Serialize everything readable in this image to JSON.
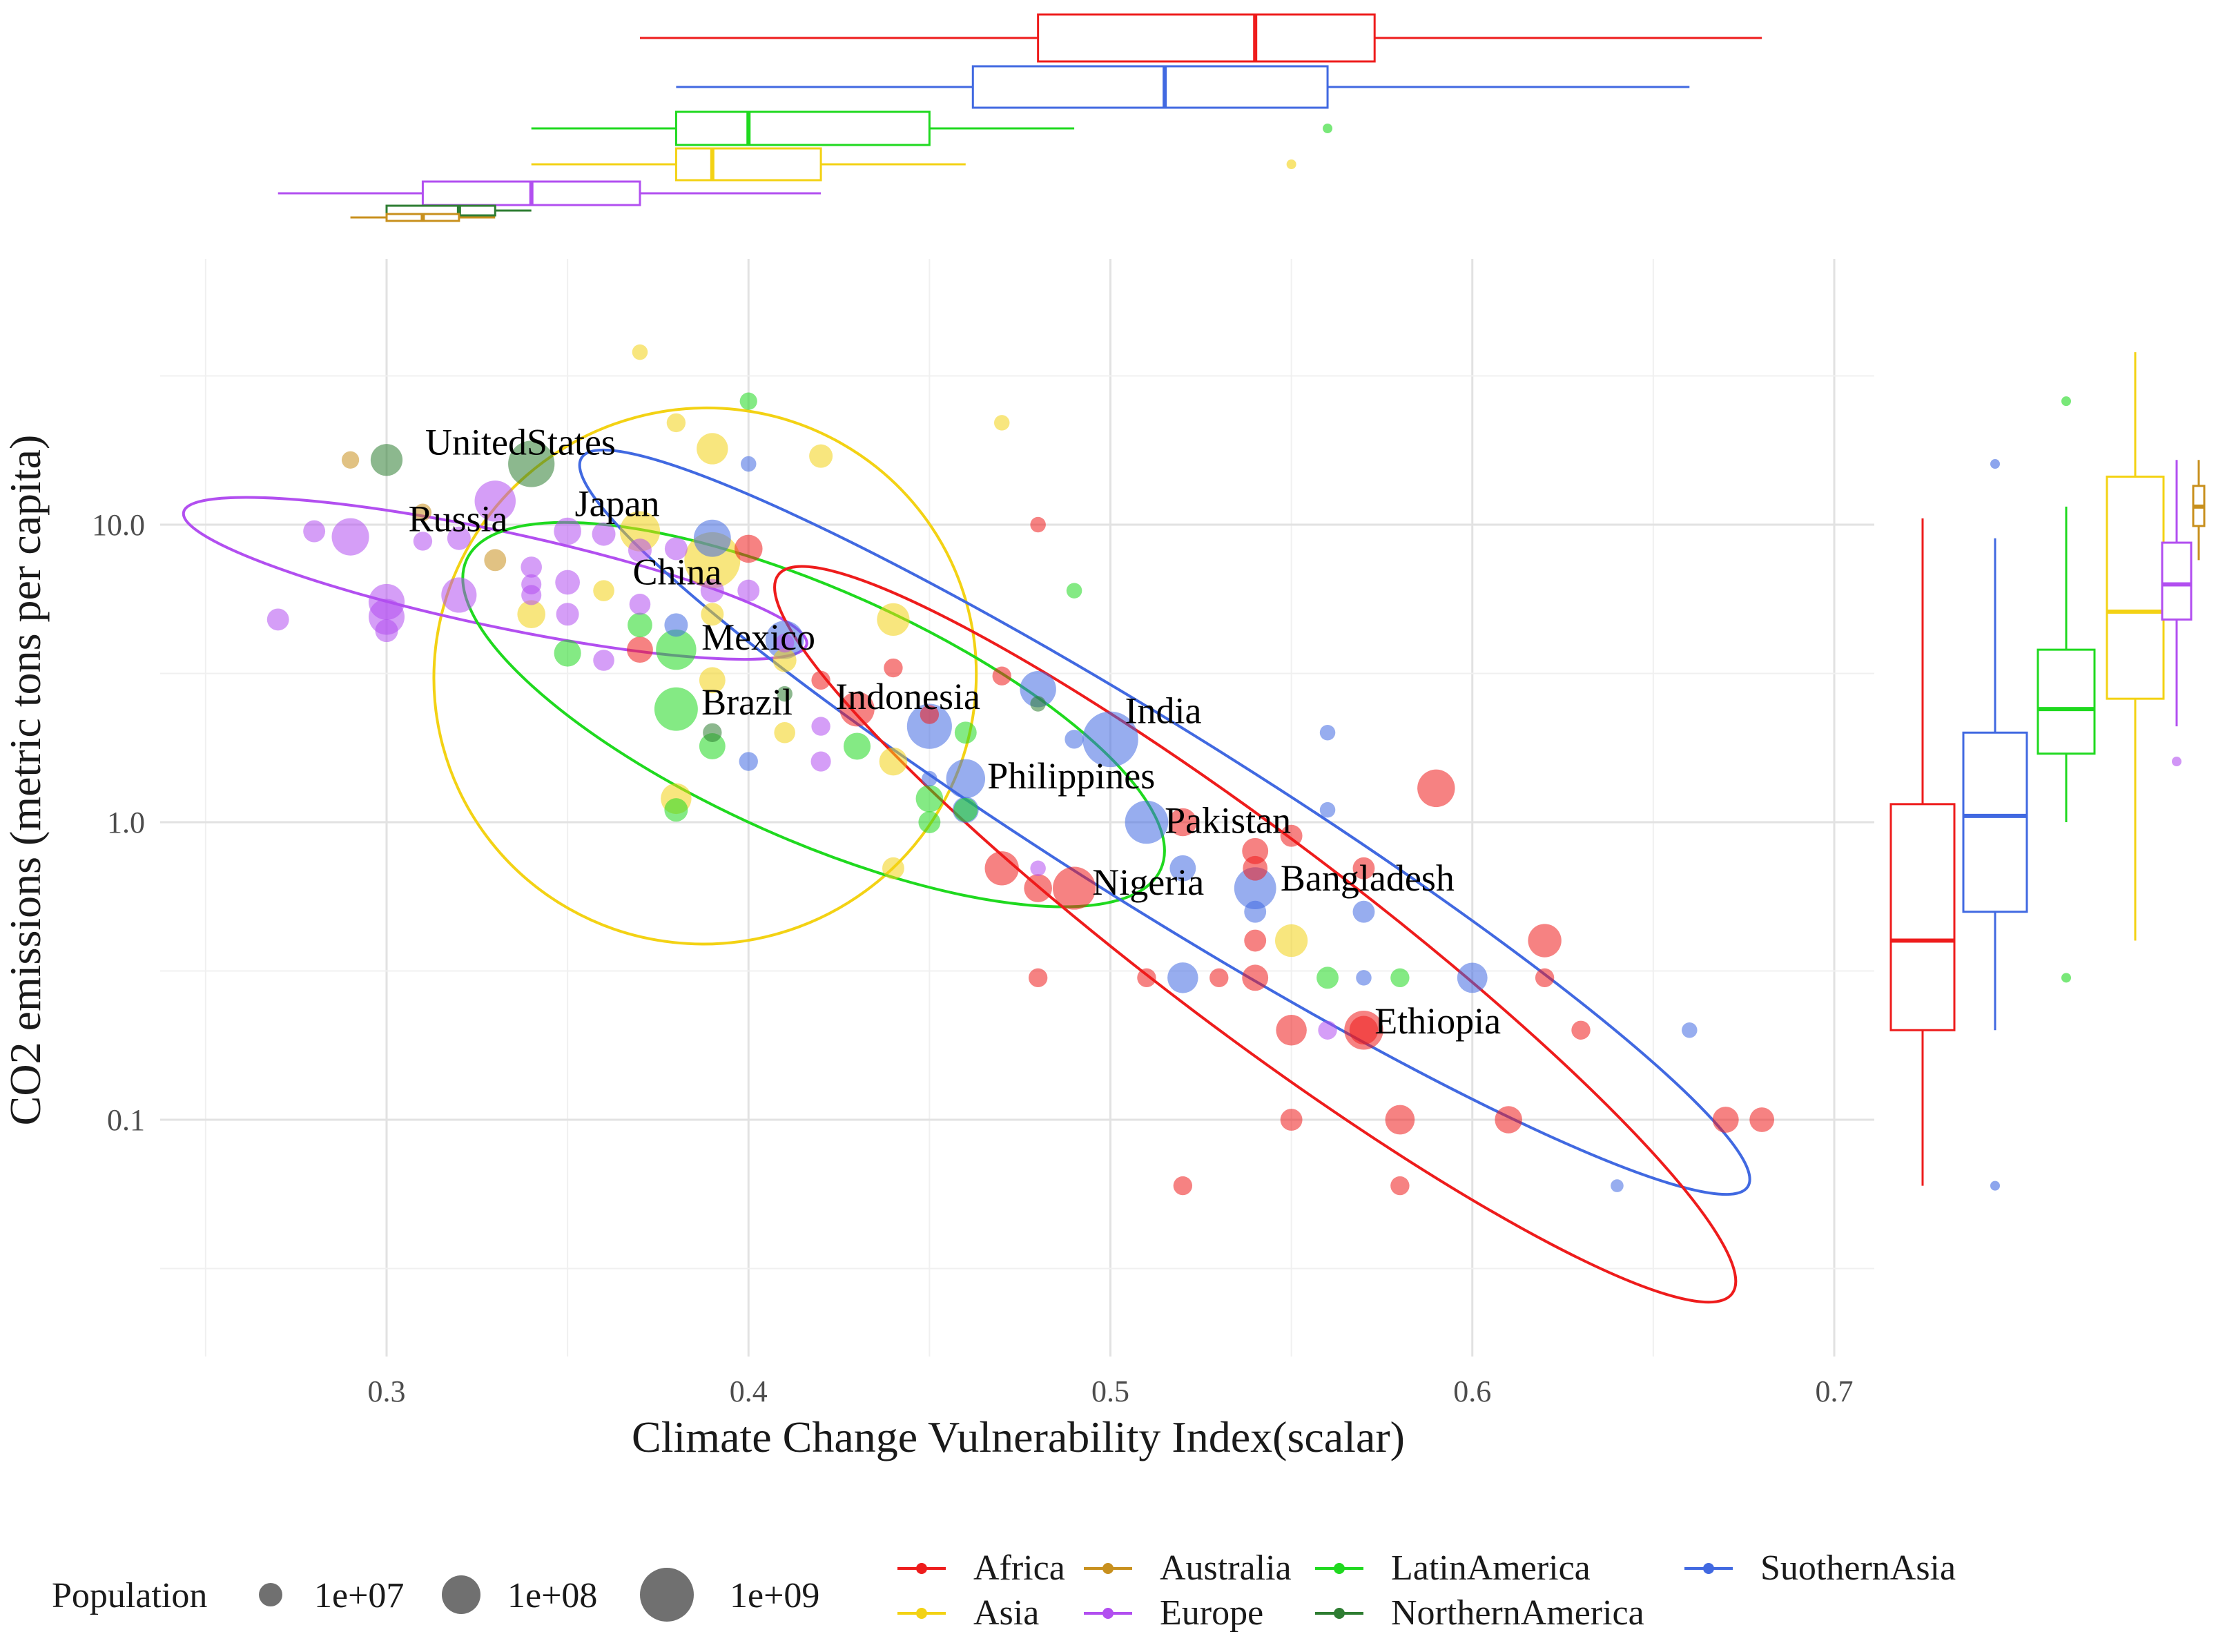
{
  "chart_data": {
    "type": "scatter",
    "xlabel": "Climate Change Vulnerability Index(scalar)",
    "ylabel": "CO2 emissions (metric tons per capita)",
    "xlim": [
      0.25,
      0.71
    ],
    "ylim_log10": [
      -1.78,
      1.9
    ],
    "x_ticks": [
      0.3,
      0.4,
      0.5,
      0.6,
      0.7
    ],
    "x_tick_labels": [
      "0.3",
      "0.4",
      "0.5",
      "0.6",
      "0.7"
    ],
    "y_ticks": [
      0.1,
      1.0,
      10.0
    ],
    "y_tick_labels": [
      "0.1",
      "1.0",
      "10.0"
    ],
    "colors": {
      "Africa": "#ee1c1c",
      "Asia": "#f3d214",
      "Australia": "#c8901e",
      "Europe": "#b24ff0",
      "LatinAmerica": "#1fd91f",
      "NorthernAmerica": "#2e7d32",
      "SuothernAsia": "#4169e1"
    },
    "legend": {
      "size_title": "Population",
      "size_levels": [
        {
          "label": "1e+07",
          "value": 10000000
        },
        {
          "label": "1e+08",
          "value": 100000000
        },
        {
          "label": "1e+09",
          "value": 1000000000
        }
      ],
      "regions": [
        {
          "key": "Africa",
          "label": "Africa"
        },
        {
          "key": "Asia",
          "label": "Asia"
        },
        {
          "key": "Australia",
          "label": "Australia"
        },
        {
          "key": "Europe",
          "label": "Europe"
        },
        {
          "key": "LatinAmerica",
          "label": "LatinAmerica"
        },
        {
          "key": "NorthernAmerica",
          "label": "NorthernAmerica"
        },
        {
          "key": "SuothernAsia",
          "label": "SuothernAsia"
        }
      ]
    },
    "labels": [
      {
        "text": "UnitedStates",
        "x": 0.337,
        "y": 17.2,
        "anchor": "middle"
      },
      {
        "text": "Russia",
        "x": 0.306,
        "y": 9.5,
        "anchor": "start"
      },
      {
        "text": "Japan",
        "x": 0.352,
        "y": 10.7,
        "anchor": "start"
      },
      {
        "text": "China",
        "x": 0.368,
        "y": 6.3,
        "anchor": "start"
      },
      {
        "text": "Mexico",
        "x": 0.387,
        "y": 3.8,
        "anchor": "start"
      },
      {
        "text": "Brazil",
        "x": 0.387,
        "y": 2.3,
        "anchor": "start"
      },
      {
        "text": "Indonesia",
        "x": 0.424,
        "y": 2.4,
        "anchor": "start"
      },
      {
        "text": "India",
        "x": 0.504,
        "y": 2.15,
        "anchor": "start"
      },
      {
        "text": "Philippines",
        "x": 0.466,
        "y": 1.3,
        "anchor": "start"
      },
      {
        "text": "Pakistan",
        "x": 0.515,
        "y": 0.92,
        "anchor": "start"
      },
      {
        "text": "Nigeria",
        "x": 0.495,
        "y": 0.57,
        "anchor": "start"
      },
      {
        "text": "Bangladesh",
        "x": 0.547,
        "y": 0.59,
        "anchor": "start"
      },
      {
        "text": "Ethiopia",
        "x": 0.573,
        "y": 0.195,
        "anchor": "start"
      }
    ],
    "points": [
      {
        "x": 0.5,
        "y": 1.9,
        "r": "SuothernAsia",
        "pop": 1300000000
      },
      {
        "x": 0.39,
        "y": 7.6,
        "r": "Asia",
        "pop": 1380000000
      },
      {
        "x": 0.34,
        "y": 16.0,
        "r": "NorthernAmerica",
        "pop": 325000000
      },
      {
        "x": 0.45,
        "y": 2.1,
        "r": "SuothernAsia",
        "pop": 260000000
      },
      {
        "x": 0.38,
        "y": 2.4,
        "r": "LatinAmerica",
        "pop": 207000000
      },
      {
        "x": 0.51,
        "y": 1.0,
        "r": "SuothernAsia",
        "pop": 200000000
      },
      {
        "x": 0.49,
        "y": 0.6,
        "r": "Africa",
        "pop": 190000000
      },
      {
        "x": 0.54,
        "y": 0.6,
        "r": "SuothernAsia",
        "pop": 165000000
      },
      {
        "x": 0.33,
        "y": 12.0,
        "r": "Europe",
        "pop": 144000000
      },
      {
        "x": 0.37,
        "y": 9.5,
        "r": "Asia",
        "pop": 127000000
      },
      {
        "x": 0.38,
        "y": 3.8,
        "r": "LatinAmerica",
        "pop": 128000000
      },
      {
        "x": 0.57,
        "y": 0.2,
        "r": "Africa",
        "pop": 105000000
      },
      {
        "x": 0.46,
        "y": 1.4,
        "r": "SuothernAsia",
        "pop": 105000000
      },
      {
        "x": 0.41,
        "y": 4.1,
        "r": "SuothernAsia",
        "pop": 95000000
      },
      {
        "x": 0.59,
        "y": 1.3,
        "r": "Africa",
        "pop": 85000000
      },
      {
        "x": 0.29,
        "y": 9.1,
        "r": "Europe",
        "pop": 82000000
      },
      {
        "x": 0.39,
        "y": 9.0,
        "r": "SuothernAsia",
        "pop": 80000000
      },
      {
        "x": 0.3,
        "y": 5.5,
        "r": "Europe",
        "pop": 67000000
      },
      {
        "x": 0.3,
        "y": 4.9,
        "r": "Europe",
        "pop": 66000000
      },
      {
        "x": 0.32,
        "y": 5.8,
        "r": "Europe",
        "pop": 60000000
      },
      {
        "x": 0.48,
        "y": 2.8,
        "r": "SuothernAsia",
        "pop": 69000000
      },
      {
        "x": 0.43,
        "y": 2.4,
        "r": "Africa",
        "pop": 56000000
      },
      {
        "x": 0.47,
        "y": 0.7,
        "r": "Africa",
        "pop": 50000000
      },
      {
        "x": 0.62,
        "y": 0.4,
        "r": "Africa",
        "pop": 45000000
      },
      {
        "x": 0.55,
        "y": 0.4,
        "r": "Asia",
        "pop": 40000000
      },
      {
        "x": 0.44,
        "y": 4.8,
        "r": "Asia",
        "pop": 40000000
      },
      {
        "x": 0.39,
        "y": 18.0,
        "r": "Asia",
        "pop": 33000000
      },
      {
        "x": 0.38,
        "y": 1.2,
        "r": "Asia",
        "pop": 30000000
      },
      {
        "x": 0.52,
        "y": 0.3,
        "r": "SuothernAsia",
        "pop": 30000000
      },
      {
        "x": 0.6,
        "y": 0.3,
        "r": "SuothernAsia",
        "pop": 28000000
      },
      {
        "x": 0.55,
        "y": 0.2,
        "r": "Africa",
        "pop": 30000000
      },
      {
        "x": 0.57,
        "y": 0.2,
        "r": "Africa",
        "pop": 22000000
      },
      {
        "x": 0.58,
        "y": 0.1,
        "r": "Africa",
        "pop": 25000000
      },
      {
        "x": 0.61,
        "y": 0.1,
        "r": "Africa",
        "pop": 18000000
      },
      {
        "x": 0.67,
        "y": 0.1,
        "r": "Africa",
        "pop": 15000000
      },
      {
        "x": 0.68,
        "y": 0.1,
        "r": "Africa",
        "pop": 12000000
      },
      {
        "x": 0.48,
        "y": 0.6,
        "r": "Africa",
        "pop": 20000000
      },
      {
        "x": 0.52,
        "y": 1.0,
        "r": "Africa",
        "pop": 20000000
      },
      {
        "x": 0.54,
        "y": 0.8,
        "r": "Africa",
        "pop": 15000000
      },
      {
        "x": 0.54,
        "y": 0.7,
        "r": "Africa",
        "pop": 12000000
      },
      {
        "x": 0.52,
        "y": 0.7,
        "r": "SuothernAsia",
        "pop": 15000000
      },
      {
        "x": 0.45,
        "y": 1.2,
        "r": "LatinAmerica",
        "pop": 18000000
      },
      {
        "x": 0.43,
        "y": 1.8,
        "r": "LatinAmerica",
        "pop": 17000000
      },
      {
        "x": 0.35,
        "y": 3.7,
        "r": "LatinAmerica",
        "pop": 17000000
      },
      {
        "x": 0.39,
        "y": 1.8,
        "r": "LatinAmerica",
        "pop": 15000000
      },
      {
        "x": 0.46,
        "y": 1.1,
        "r": "LatinAmerica",
        "pop": 11000000
      },
      {
        "x": 0.38,
        "y": 1.1,
        "r": "LatinAmerica",
        "pop": 10000000
      },
      {
        "x": 0.37,
        "y": 4.6,
        "r": "LatinAmerica",
        "pop": 12000000
      },
      {
        "x": 0.45,
        "y": 1.0,
        "r": "LatinAmerica",
        "pop": 8000000
      },
      {
        "x": 0.46,
        "y": 2.0,
        "r": "LatinAmerica",
        "pop": 8000000
      },
      {
        "x": 0.44,
        "y": 1.6,
        "r": "Asia",
        "pop": 20000000
      },
      {
        "x": 0.42,
        "y": 17.0,
        "r": "Asia",
        "pop": 10000000
      },
      {
        "x": 0.37,
        "y": 38.0,
        "r": "Asia",
        "pop": 3000000
      },
      {
        "x": 0.38,
        "y": 22.0,
        "r": "Asia",
        "pop": 5000000
      },
      {
        "x": 0.47,
        "y": 22.0,
        "r": "Asia",
        "pop": 3000000
      },
      {
        "x": 0.34,
        "y": 5.0,
        "r": "Asia",
        "pop": 20000000
      },
      {
        "x": 0.41,
        "y": 3.5,
        "r": "Asia",
        "pop": 10000000
      },
      {
        "x": 0.39,
        "y": 3.0,
        "r": "Asia",
        "pop": 15000000
      },
      {
        "x": 0.44,
        "y": 0.7,
        "r": "Asia",
        "pop": 8000000
      },
      {
        "x": 0.41,
        "y": 2.0,
        "r": "Asia",
        "pop": 7000000
      },
      {
        "x": 0.36,
        "y": 6.0,
        "r": "Asia",
        "pop": 7000000
      },
      {
        "x": 0.39,
        "y": 5.0,
        "r": "Asia",
        "pop": 9000000
      },
      {
        "x": 0.28,
        "y": 9.5,
        "r": "Europe",
        "pop": 8000000
      },
      {
        "x": 0.27,
        "y": 4.8,
        "r": "Europe",
        "pop": 8000000
      },
      {
        "x": 0.32,
        "y": 9.0,
        "r": "Europe",
        "pop": 10000000
      },
      {
        "x": 0.35,
        "y": 9.5,
        "r": "Europe",
        "pop": 18000000
      },
      {
        "x": 0.36,
        "y": 9.3,
        "r": "Europe",
        "pop": 10000000
      },
      {
        "x": 0.37,
        "y": 8.2,
        "r": "Europe",
        "pop": 10000000
      },
      {
        "x": 0.35,
        "y": 6.4,
        "r": "Europe",
        "pop": 12000000
      },
      {
        "x": 0.35,
        "y": 5.0,
        "r": "Europe",
        "pop": 9000000
      },
      {
        "x": 0.34,
        "y": 7.2,
        "r": "Europe",
        "pop": 7000000
      },
      {
        "x": 0.34,
        "y": 6.3,
        "r": "Europe",
        "pop": 6000000
      },
      {
        "x": 0.34,
        "y": 5.8,
        "r": "Europe",
        "pop": 6000000
      },
      {
        "x": 0.36,
        "y": 3.5,
        "r": "Europe",
        "pop": 7000000
      },
      {
        "x": 0.37,
        "y": 5.4,
        "r": "Europe",
        "pop": 7000000
      },
      {
        "x": 0.38,
        "y": 8.3,
        "r": "Europe",
        "pop": 9000000
      },
      {
        "x": 0.39,
        "y": 6.0,
        "r": "Europe",
        "pop": 10000000
      },
      {
        "x": 0.4,
        "y": 6.0,
        "r": "Europe",
        "pop": 8000000
      },
      {
        "x": 0.42,
        "y": 2.1,
        "r": "Europe",
        "pop": 5000000
      },
      {
        "x": 0.42,
        "y": 1.6,
        "r": "Europe",
        "pop": 6000000
      },
      {
        "x": 0.31,
        "y": 8.8,
        "r": "Europe",
        "pop": 5000000
      },
      {
        "x": 0.3,
        "y": 4.4,
        "r": "Europe",
        "pop": 9000000
      },
      {
        "x": 0.33,
        "y": 7.6,
        "r": "Australia",
        "pop": 8000000
      },
      {
        "x": 0.29,
        "y": 16.5,
        "r": "Australia",
        "pop": 4000000
      },
      {
        "x": 0.31,
        "y": 11.0,
        "r": "Australia",
        "pop": 4000000
      },
      {
        "x": 0.3,
        "y": 16.5,
        "r": "NorthernAmerica",
        "pop": 36000000
      },
      {
        "x": 0.4,
        "y": 26.0,
        "r": "LatinAmerica",
        "pop": 4000000
      },
      {
        "x": 0.49,
        "y": 6.0,
        "r": "LatinAmerica",
        "pop": 3000000
      },
      {
        "x": 0.48,
        "y": 10.0,
        "r": "Africa",
        "pop": 3000000
      },
      {
        "x": 0.4,
        "y": 16.0,
        "r": "SuothernAsia",
        "pop": 3000000
      },
      {
        "x": 0.56,
        "y": 2.0,
        "r": "SuothernAsia",
        "pop": 3000000
      },
      {
        "x": 0.56,
        "y": 1.1,
        "r": "SuothernAsia",
        "pop": 3000000
      },
      {
        "x": 0.66,
        "y": 0.2,
        "r": "SuothernAsia",
        "pop": 3000000
      },
      {
        "x": 0.64,
        "y": 0.06,
        "r": "SuothernAsia",
        "pop": 2000000
      },
      {
        "x": 0.52,
        "y": 0.06,
        "r": "Africa",
        "pop": 5000000
      },
      {
        "x": 0.58,
        "y": 0.06,
        "r": "Africa",
        "pop": 5000000
      },
      {
        "x": 0.62,
        "y": 0.3,
        "r": "Africa",
        "pop": 5000000
      },
      {
        "x": 0.63,
        "y": 0.2,
        "r": "Africa",
        "pop": 5000000
      },
      {
        "x": 0.55,
        "y": 0.1,
        "r": "Africa",
        "pop": 8000000
      },
      {
        "x": 0.54,
        "y": 0.4,
        "r": "Africa",
        "pop": 8000000
      },
      {
        "x": 0.54,
        "y": 0.3,
        "r": "Africa",
        "pop": 15000000
      },
      {
        "x": 0.55,
        "y": 0.9,
        "r": "Africa",
        "pop": 8000000
      },
      {
        "x": 0.57,
        "y": 0.7,
        "r": "Africa",
        "pop": 8000000
      },
      {
        "x": 0.53,
        "y": 0.3,
        "r": "Africa",
        "pop": 5000000
      },
      {
        "x": 0.51,
        "y": 0.3,
        "r": "Africa",
        "pop": 5000000
      },
      {
        "x": 0.48,
        "y": 0.3,
        "r": "Africa",
        "pop": 5000000
      },
      {
        "x": 0.47,
        "y": 3.1,
        "r": "Africa",
        "pop": 5000000
      },
      {
        "x": 0.45,
        "y": 2.3,
        "r": "Africa",
        "pop": 5000000
      },
      {
        "x": 0.42,
        "y": 3.0,
        "r": "Africa",
        "pop": 5000000
      },
      {
        "x": 0.44,
        "y": 3.3,
        "r": "Africa",
        "pop": 5000000
      },
      {
        "x": 0.37,
        "y": 3.8,
        "r": "Africa",
        "pop": 15000000
      },
      {
        "x": 0.4,
        "y": 8.3,
        "r": "Africa",
        "pop": 20000000
      },
      {
        "x": 0.56,
        "y": 0.3,
        "r": "LatinAmerica",
        "pop": 8000000
      },
      {
        "x": 0.58,
        "y": 0.3,
        "r": "LatinAmerica",
        "pop": 5000000
      },
      {
        "x": 0.48,
        "y": 2.5,
        "r": "NorthernAmerica",
        "pop": 3000000
      },
      {
        "x": 0.41,
        "y": 2.7,
        "r": "NorthernAmerica",
        "pop": 3000000
      },
      {
        "x": 0.39,
        "y": 2.0,
        "r": "NorthernAmerica",
        "pop": 5000000
      },
      {
        "x": 0.56,
        "y": 0.2,
        "r": "Europe",
        "pop": 5000000
      },
      {
        "x": 0.48,
        "y": 0.7,
        "r": "Europe",
        "pop": 3000000
      },
      {
        "x": 0.41,
        "y": 4.0,
        "r": "Europe",
        "pop": 5000000
      },
      {
        "x": 0.57,
        "y": 0.3,
        "r": "SuothernAsia",
        "pop": 3000000
      },
      {
        "x": 0.57,
        "y": 0.5,
        "r": "SuothernAsia",
        "pop": 8000000
      },
      {
        "x": 0.54,
        "y": 0.5,
        "r": "SuothernAsia",
        "pop": 8000000
      },
      {
        "x": 0.45,
        "y": 1.4,
        "r": "SuothernAsia",
        "pop": 3000000
      },
      {
        "x": 0.49,
        "y": 1.9,
        "r": "SuothernAsia",
        "pop": 5000000
      },
      {
        "x": 0.46,
        "y": 1.1,
        "r": "SuothernAsia",
        "pop": 15000000
      },
      {
        "x": 0.38,
        "y": 4.6,
        "r": "SuothernAsia",
        "pop": 10000000
      },
      {
        "x": 0.4,
        "y": 1.6,
        "r": "SuothernAsia",
        "pop": 5000000
      }
    ],
    "ellipses": [
      {
        "region": "Asia",
        "cx": 0.388,
        "cy": 3.1,
        "rx": 0.075,
        "ry": 0.9,
        "tilt": -15
      },
      {
        "region": "Europe",
        "cx": 0.33,
        "cy": 6.6,
        "rx": 0.088,
        "ry": 0.16,
        "tilt": 12
      },
      {
        "region": "LatinAmerica",
        "cx": 0.418,
        "cy": 2.3,
        "rx": 0.105,
        "ry": 0.42,
        "tilt": 24
      },
      {
        "region": "SuothernAsia",
        "cx": 0.515,
        "cy": 1.0,
        "rx": 0.19,
        "ry": 0.3,
        "tilt": 32
      },
      {
        "region": "Africa",
        "cx": 0.54,
        "cy": 0.42,
        "rx": 0.165,
        "ry": 0.33,
        "tilt": 37
      }
    ],
    "x_boxplots": [
      {
        "region": "Africa",
        "whisker_low": 0.37,
        "q1": 0.48,
        "median": 0.54,
        "q3": 0.573,
        "whisker_high": 0.68,
        "outliers": []
      },
      {
        "region": "SuothernAsia",
        "whisker_low": 0.38,
        "q1": 0.462,
        "median": 0.515,
        "q3": 0.56,
        "whisker_high": 0.66,
        "outliers": []
      },
      {
        "region": "LatinAmerica",
        "whisker_low": 0.34,
        "q1": 0.38,
        "median": 0.4,
        "q3": 0.45,
        "whisker_high": 0.49,
        "outliers": [
          0.56
        ]
      },
      {
        "region": "Asia",
        "whisker_low": 0.34,
        "q1": 0.38,
        "median": 0.39,
        "q3": 0.42,
        "whisker_high": 0.46,
        "outliers": [
          0.55
        ]
      },
      {
        "region": "Europe",
        "whisker_low": 0.27,
        "q1": 0.31,
        "median": 0.34,
        "q3": 0.37,
        "whisker_high": 0.42,
        "outliers": []
      },
      {
        "region": "NorthernAmerica",
        "whisker_low": 0.3,
        "q1": 0.3,
        "median": 0.32,
        "q3": 0.33,
        "whisker_high": 0.34,
        "outliers": []
      },
      {
        "region": "Australia",
        "whisker_low": 0.29,
        "q1": 0.3,
        "median": 0.31,
        "q3": 0.32,
        "whisker_high": 0.33,
        "outliers": []
      }
    ],
    "y_boxplots": [
      {
        "region": "Africa",
        "whisker_low": 0.06,
        "q1": 0.2,
        "median": 0.4,
        "q3": 1.15,
        "whisker_high": 10.5,
        "outliers": []
      },
      {
        "region": "SuothernAsia",
        "whisker_low": 0.2,
        "q1": 0.5,
        "median": 1.05,
        "q3": 2.0,
        "whisker_high": 9.0,
        "outliers": [
          0.06,
          16.0
        ]
      },
      {
        "region": "LatinAmerica",
        "whisker_low": 1.0,
        "q1": 1.7,
        "median": 2.4,
        "q3": 3.8,
        "whisker_high": 11.5,
        "outliers": [
          0.3,
          26.0
        ]
      },
      {
        "region": "Asia",
        "whisker_low": 0.4,
        "q1": 2.6,
        "median": 5.1,
        "q3": 14.5,
        "whisker_high": 38.0,
        "outliers": []
      },
      {
        "region": "Europe",
        "whisker_low": 2.1,
        "q1": 4.8,
        "median": 6.3,
        "q3": 8.7,
        "whisker_high": 16.5,
        "outliers": [
          1.6
        ]
      },
      {
        "region": "Australia",
        "whisker_low": 7.6,
        "q1": 9.9,
        "median": 11.5,
        "q3": 13.5,
        "whisker_high": 16.5,
        "outliers": []
      }
    ]
  }
}
